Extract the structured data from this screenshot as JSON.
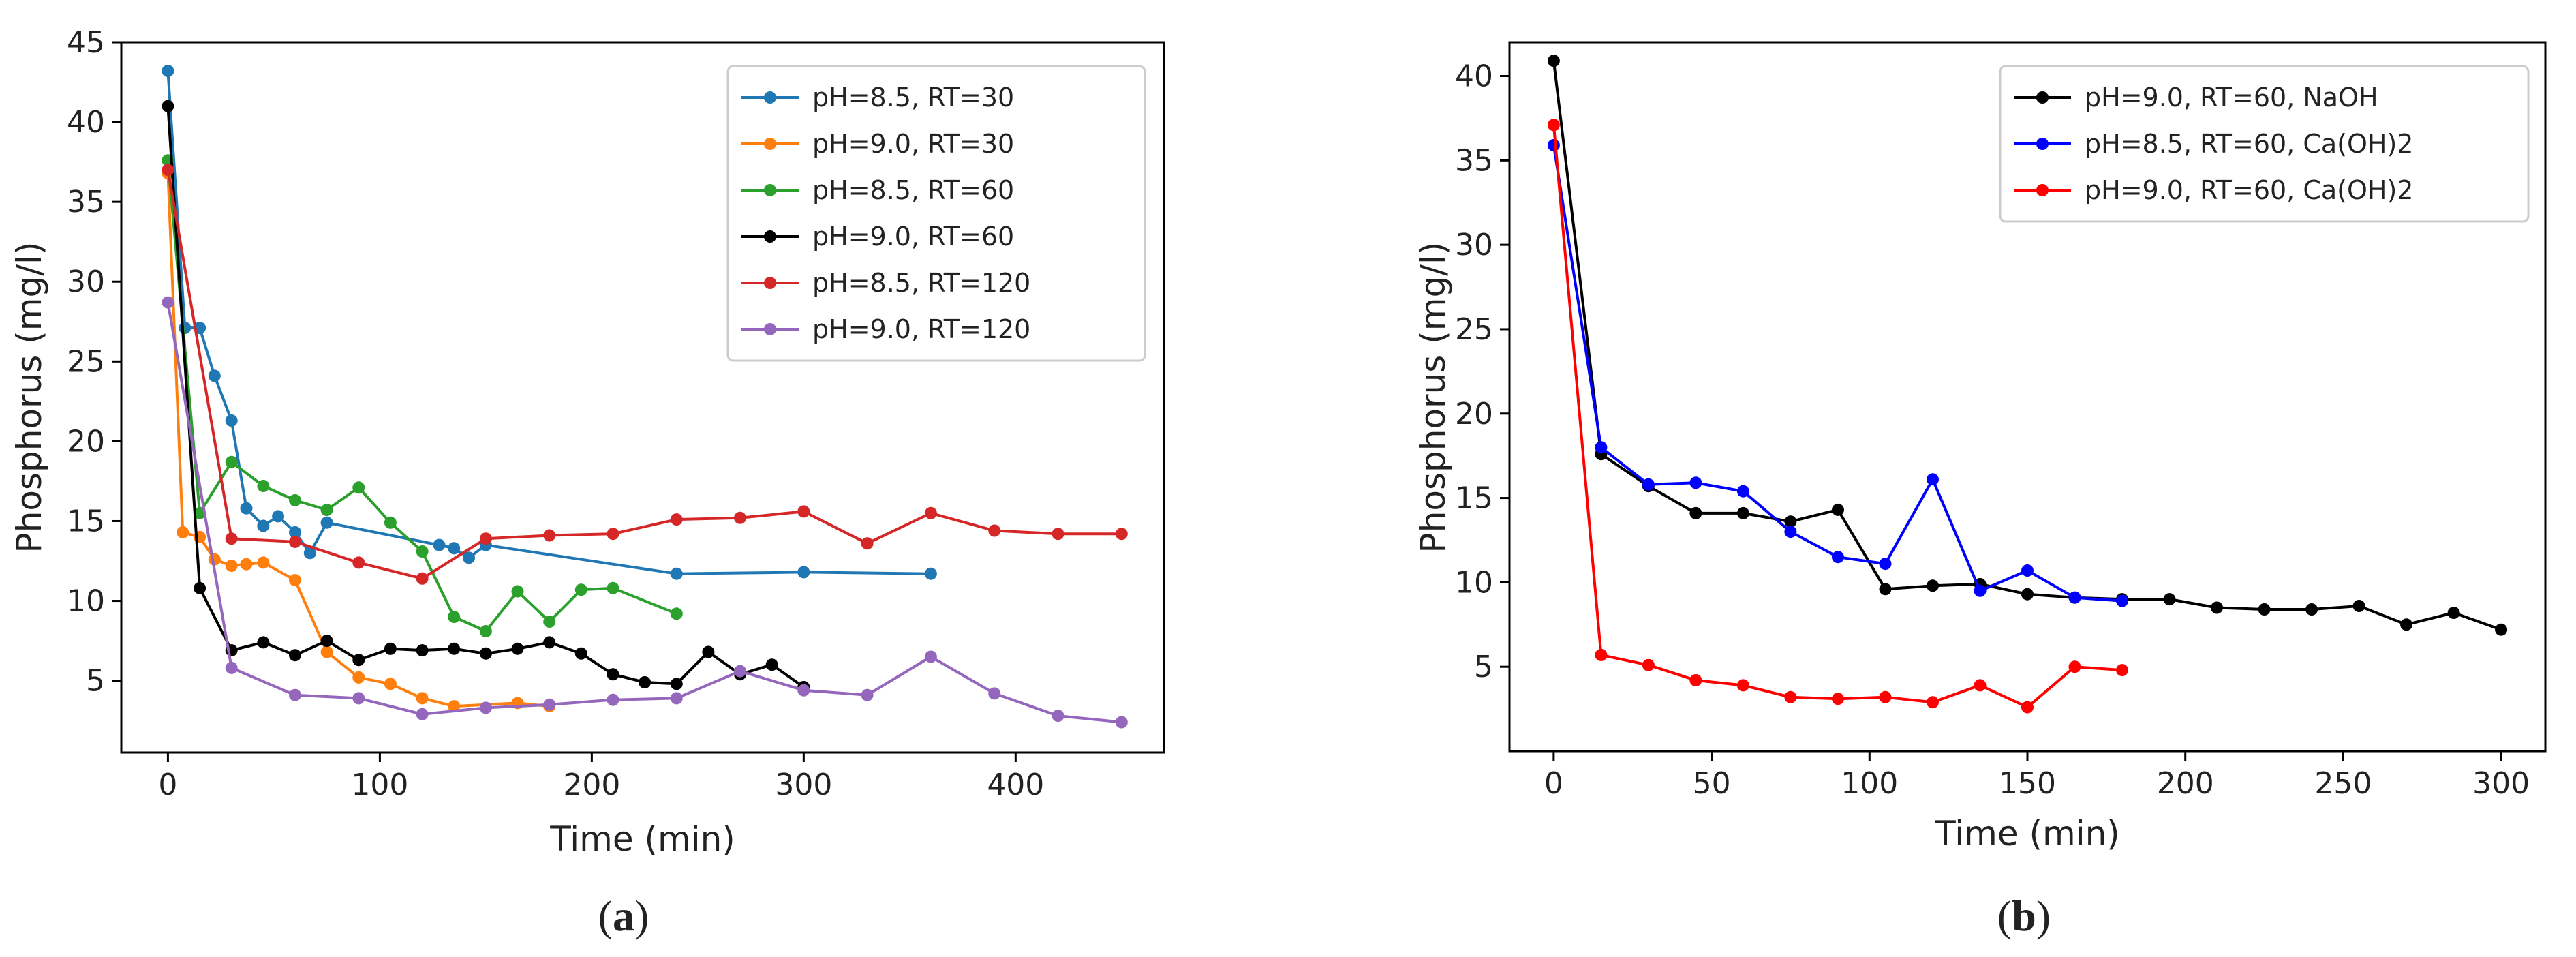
{
  "chart_data": [
    {
      "type": "line",
      "panel_label": "(a)",
      "panel_letter": "a",
      "xlabel": "Time (min)",
      "ylabel": "Phosphorus (mg/l)",
      "xlim": [
        -22,
        470
      ],
      "ylim": [
        0.5,
        45
      ],
      "xticks": [
        0,
        100,
        200,
        300,
        400
      ],
      "yticks": [
        5,
        10,
        15,
        20,
        25,
        30,
        35,
        40,
        45
      ],
      "legend_position": "upper-right",
      "series": [
        {
          "name": "pH=8.5, RT=30",
          "color": "#1f77b4",
          "x": [
            0,
            8,
            15,
            22,
            30,
            37,
            45,
            52,
            60,
            67,
            75,
            128,
            135,
            142,
            150,
            240,
            300,
            360
          ],
          "y": [
            43.2,
            27.1,
            27.1,
            24.1,
            21.3,
            15.8,
            14.7,
            15.3,
            14.3,
            13.0,
            14.9,
            13.5,
            13.3,
            12.7,
            13.5,
            11.7,
            11.8,
            11.7
          ]
        },
        {
          "name": "pH=9.0, RT=30",
          "color": "#ff7f0e",
          "x": [
            0,
            7,
            15,
            22,
            30,
            37,
            45,
            60,
            75,
            90,
            105,
            120,
            135,
            165,
            180
          ],
          "y": [
            36.8,
            14.3,
            14.0,
            12.6,
            12.2,
            12.3,
            12.4,
            11.3,
            6.8,
            5.2,
            4.8,
            3.9,
            3.4,
            3.6,
            3.4
          ]
        },
        {
          "name": "pH=8.5, RT=60",
          "color": "#2ca02c",
          "x": [
            0,
            15,
            30,
            45,
            60,
            75,
            90,
            105,
            120,
            135,
            150,
            165,
            180,
            195,
            210,
            240
          ],
          "y": [
            37.6,
            15.5,
            18.7,
            17.2,
            16.3,
            15.7,
            17.1,
            14.9,
            13.1,
            9.0,
            8.1,
            10.6,
            8.7,
            10.7,
            10.8,
            9.2
          ]
        },
        {
          "name": "pH=9.0, RT=60",
          "color": "#000000",
          "x": [
            0,
            15,
            30,
            45,
            60,
            75,
            90,
            105,
            120,
            135,
            150,
            165,
            180,
            195,
            210,
            225,
            240,
            255,
            270,
            285,
            300
          ],
          "y": [
            41.0,
            10.8,
            6.9,
            7.4,
            6.6,
            7.5,
            6.3,
            7.0,
            6.9,
            7.0,
            6.7,
            7.0,
            7.4,
            6.7,
            5.4,
            4.9,
            4.8,
            6.8,
            5.4,
            6.0,
            4.6
          ]
        },
        {
          "name": "pH=8.5, RT=120",
          "color": "#d62728",
          "x": [
            0,
            30,
            60,
            90,
            120,
            150,
            180,
            210,
            240,
            270,
            300,
            330,
            360,
            390,
            420,
            450
          ],
          "y": [
            37.0,
            13.9,
            13.7,
            12.4,
            11.4,
            13.9,
            14.1,
            14.2,
            15.1,
            15.2,
            15.6,
            13.6,
            15.5,
            14.4,
            14.2,
            14.2
          ]
        },
        {
          "name": "pH=9.0, RT=120",
          "color": "#9467bd",
          "x": [
            0,
            30,
            60,
            90,
            120,
            150,
            180,
            210,
            240,
            270,
            300,
            330,
            360,
            390,
            420,
            450
          ],
          "y": [
            28.7,
            5.8,
            4.1,
            3.9,
            2.9,
            3.3,
            3.5,
            3.8,
            3.9,
            5.6,
            4.4,
            4.1,
            6.5,
            4.2,
            2.8,
            2.4
          ]
        }
      ]
    },
    {
      "type": "line",
      "panel_label": "(b)",
      "panel_letter": "b",
      "xlabel": "Time (min)",
      "ylabel": "Phosphorus (mg/l)",
      "xlim": [
        -14,
        314
      ],
      "ylim": [
        0,
        42
      ],
      "xticks": [
        0,
        50,
        100,
        150,
        200,
        250,
        300
      ],
      "yticks": [
        5,
        10,
        15,
        20,
        25,
        30,
        35,
        40
      ],
      "legend_position": "upper-right",
      "series": [
        {
          "name": "pH=9.0, RT=60, NaOH",
          "color": "#000000",
          "x": [
            0,
            15,
            30,
            45,
            60,
            75,
            90,
            105,
            120,
            135,
            150,
            165,
            180,
            195,
            210,
            225,
            240,
            255,
            270,
            285,
            300
          ],
          "y": [
            40.9,
            17.6,
            15.7,
            14.1,
            14.1,
            13.6,
            14.3,
            9.6,
            9.8,
            9.9,
            9.3,
            9.1,
            9.0,
            9.0,
            8.5,
            8.4,
            8.4,
            8.6,
            7.5,
            8.2,
            7.2
          ]
        },
        {
          "name": "pH=8.5, RT=60, Ca(OH)2",
          "color": "#0000ff",
          "x": [
            0,
            15,
            30,
            45,
            60,
            75,
            90,
            105,
            120,
            135,
            150,
            165,
            180
          ],
          "y": [
            35.9,
            18.0,
            15.8,
            15.9,
            15.4,
            13.0,
            11.5,
            11.1,
            16.1,
            9.5,
            10.7,
            9.1,
            8.9
          ]
        },
        {
          "name": "pH=9.0, RT=60, Ca(OH)2",
          "color": "#ff0000",
          "x": [
            0,
            15,
            30,
            45,
            60,
            75,
            90,
            105,
            120,
            135,
            150,
            165,
            180
          ],
          "y": [
            37.1,
            5.7,
            5.1,
            4.2,
            3.9,
            3.2,
            3.1,
            3.2,
            2.9,
            3.9,
            2.6,
            5.0,
            4.8
          ]
        }
      ]
    }
  ]
}
